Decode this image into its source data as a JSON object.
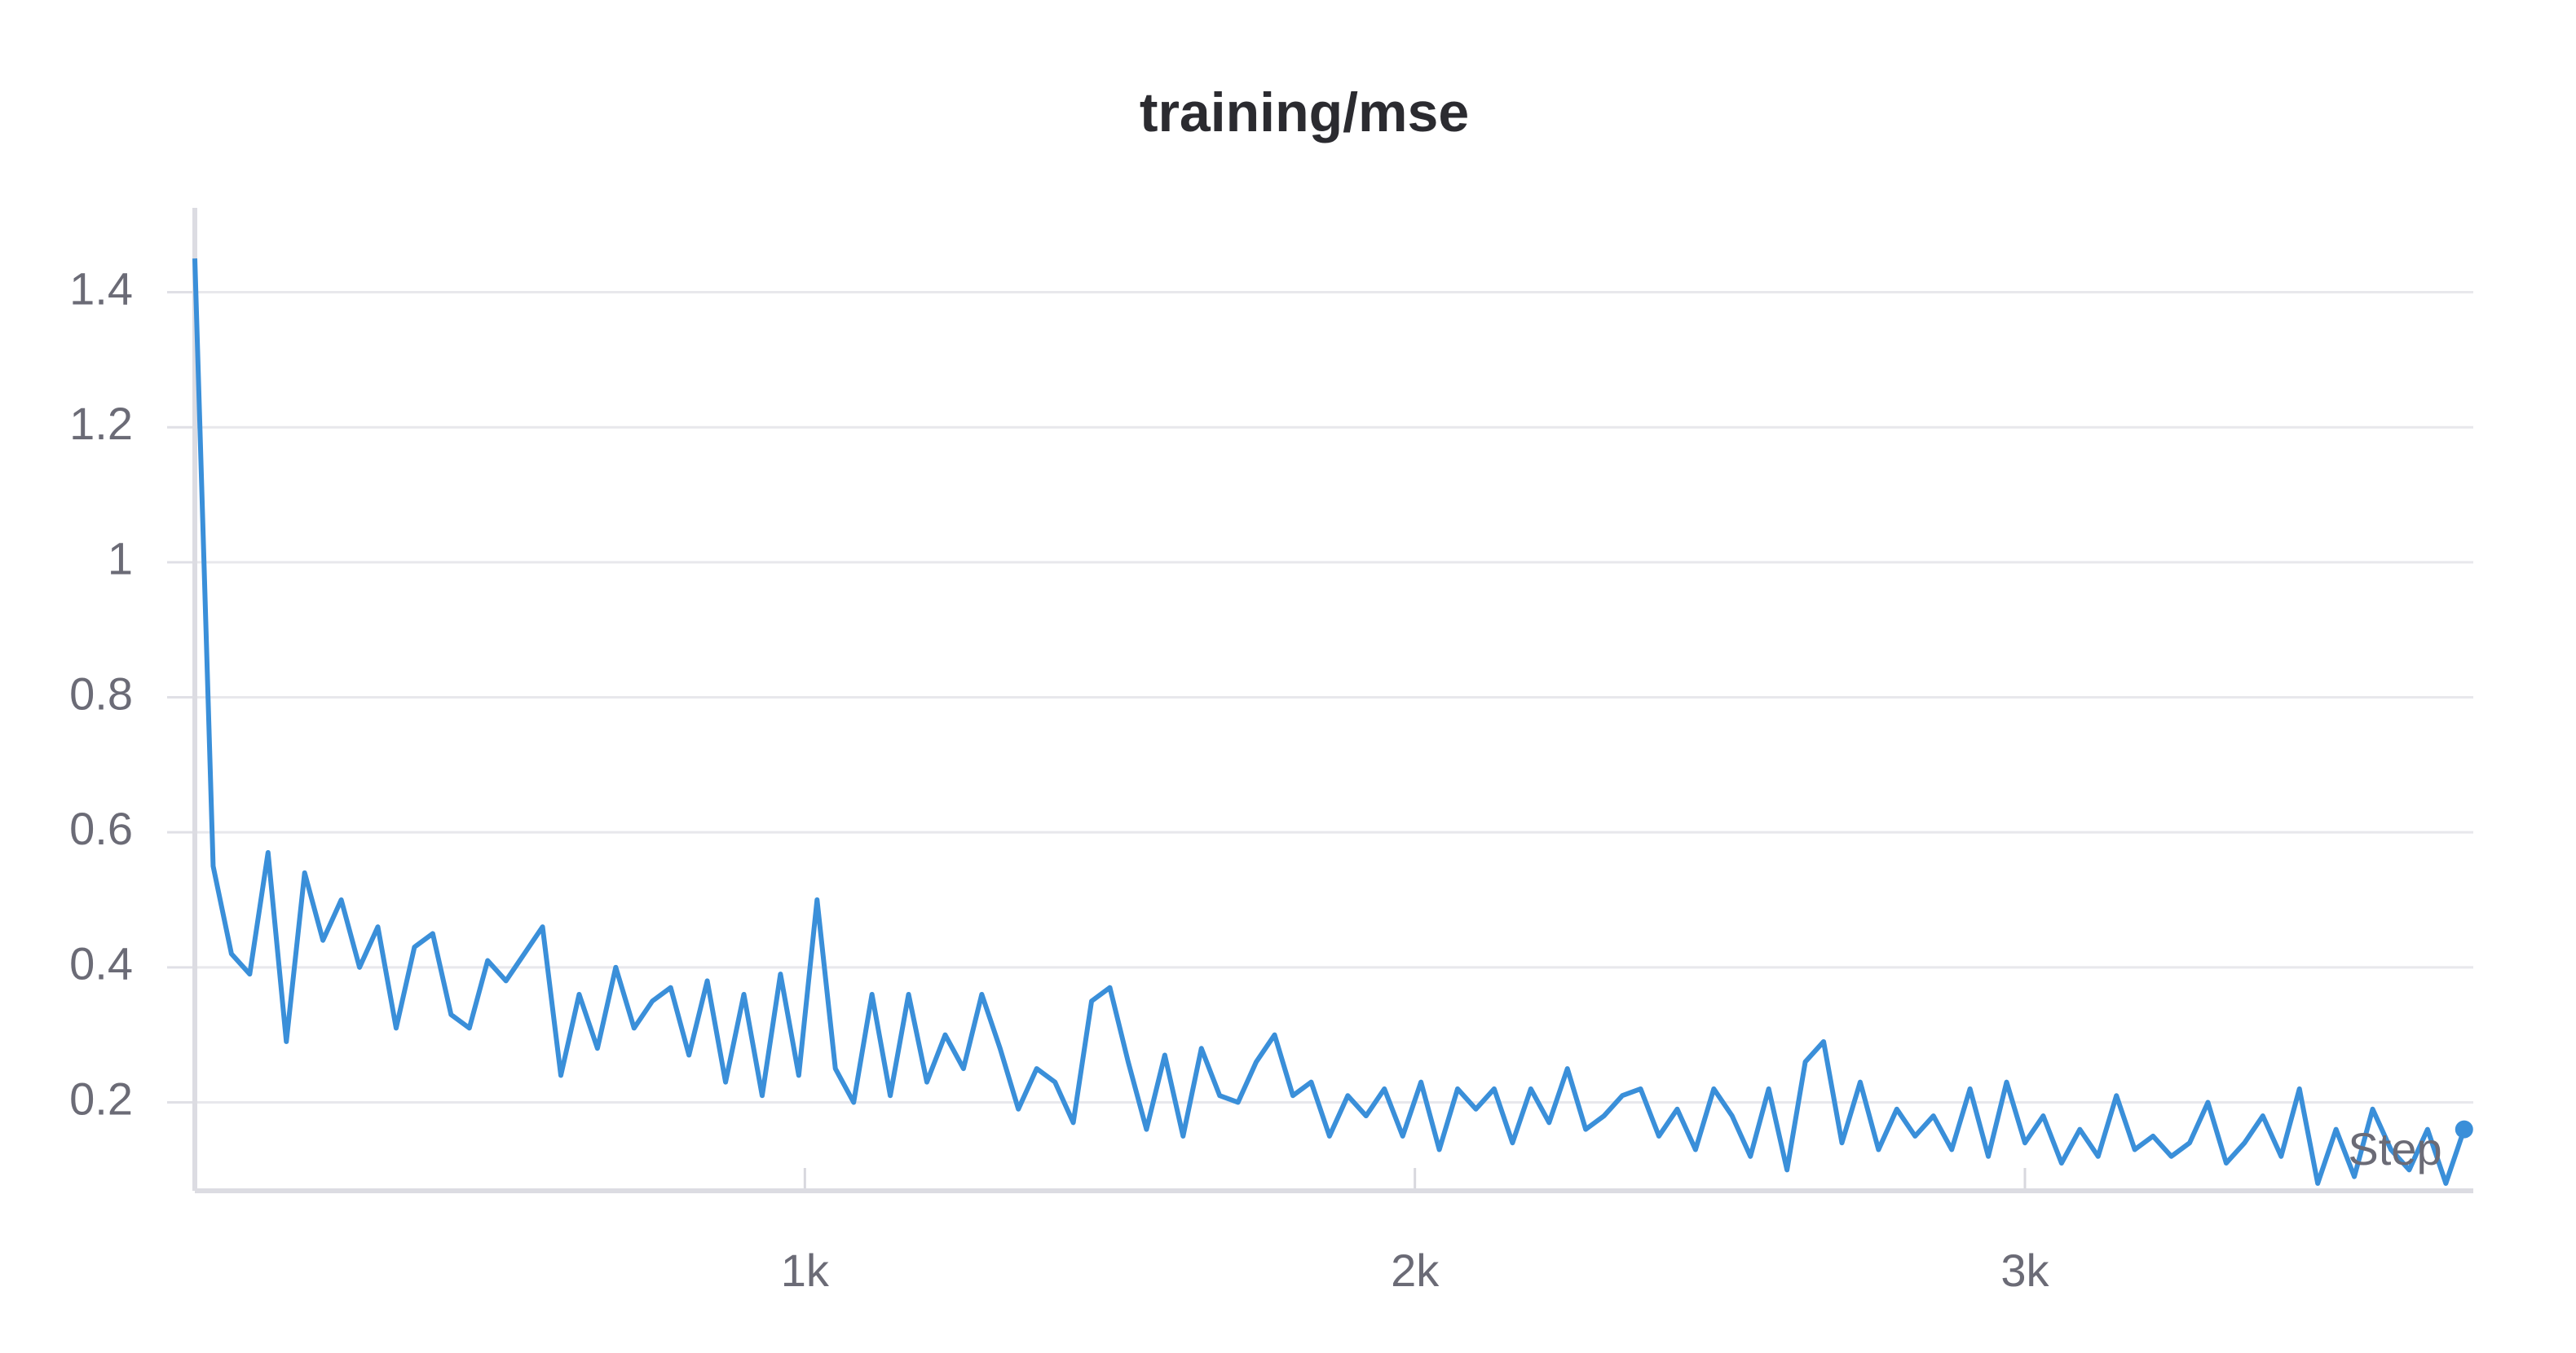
{
  "chart_data": {
    "type": "line",
    "title": "training/mse",
    "x_label": "Step",
    "x": [
      0,
      30,
      60,
      90,
      120,
      150,
      180,
      210,
      240,
      270,
      300,
      330,
      360,
      390,
      420,
      450,
      480,
      510,
      540,
      570,
      600,
      630,
      660,
      690,
      720,
      750,
      780,
      810,
      840,
      870,
      900,
      930,
      960,
      990,
      1020,
      1050,
      1080,
      1110,
      1140,
      1170,
      1200,
      1230,
      1260,
      1290,
      1320,
      1350,
      1380,
      1410,
      1440,
      1470,
      1500,
      1530,
      1560,
      1590,
      1620,
      1650,
      1680,
      1710,
      1740,
      1770,
      1800,
      1830,
      1860,
      1890,
      1920,
      1950,
      1980,
      2010,
      2040,
      2070,
      2100,
      2130,
      2160,
      2190,
      2220,
      2250,
      2280,
      2310,
      2340,
      2370,
      2400,
      2430,
      2460,
      2490,
      2520,
      2550,
      2580,
      2610,
      2640,
      2670,
      2700,
      2730,
      2760,
      2790,
      2820,
      2850,
      2880,
      2910,
      2940,
      2970,
      3000,
      3030,
      3060,
      3090,
      3120,
      3150,
      3180,
      3210,
      3240,
      3270,
      3300,
      3330,
      3360,
      3390,
      3420,
      3450,
      3480,
      3510,
      3540,
      3570,
      3600,
      3630,
      3660,
      3690,
      3720
    ],
    "series": [
      {
        "name": "training/mse",
        "color": "#3a8fd9",
        "values": [
          1.45,
          0.55,
          0.42,
          0.39,
          0.57,
          0.29,
          0.54,
          0.44,
          0.5,
          0.4,
          0.46,
          0.31,
          0.43,
          0.45,
          0.33,
          0.31,
          0.41,
          0.38,
          0.42,
          0.46,
          0.24,
          0.36,
          0.28,
          0.4,
          0.31,
          0.35,
          0.37,
          0.27,
          0.38,
          0.23,
          0.36,
          0.21,
          0.39,
          0.24,
          0.5,
          0.25,
          0.2,
          0.36,
          0.21,
          0.36,
          0.23,
          0.3,
          0.25,
          0.36,
          0.28,
          0.19,
          0.25,
          0.23,
          0.17,
          0.35,
          0.37,
          0.26,
          0.16,
          0.27,
          0.15,
          0.28,
          0.21,
          0.2,
          0.26,
          0.3,
          0.21,
          0.23,
          0.15,
          0.21,
          0.18,
          0.22,
          0.15,
          0.23,
          0.13,
          0.22,
          0.19,
          0.22,
          0.14,
          0.22,
          0.17,
          0.25,
          0.16,
          0.18,
          0.21,
          0.22,
          0.15,
          0.19,
          0.13,
          0.22,
          0.18,
          0.12,
          0.22,
          0.1,
          0.26,
          0.29,
          0.14,
          0.23,
          0.13,
          0.19,
          0.15,
          0.18,
          0.13,
          0.22,
          0.12,
          0.23,
          0.14,
          0.18,
          0.11,
          0.16,
          0.12,
          0.21,
          0.13,
          0.15,
          0.12,
          0.14,
          0.2,
          0.11,
          0.14,
          0.18,
          0.12,
          0.22,
          0.08,
          0.16,
          0.09,
          0.19,
          0.13,
          0.1,
          0.16,
          0.08,
          0.16
        ]
      }
    ],
    "xlim": [
      0,
      3735
    ],
    "ylim": [
      0.069,
      1.525
    ],
    "xticks": [
      {
        "value": 1000,
        "label": "1k"
      },
      {
        "value": 2000,
        "label": "2k"
      },
      {
        "value": 3000,
        "label": "3k"
      }
    ],
    "yticks": [
      0.2,
      0.4,
      0.6,
      0.8,
      1,
      1.2,
      1.4
    ],
    "grid": true
  }
}
